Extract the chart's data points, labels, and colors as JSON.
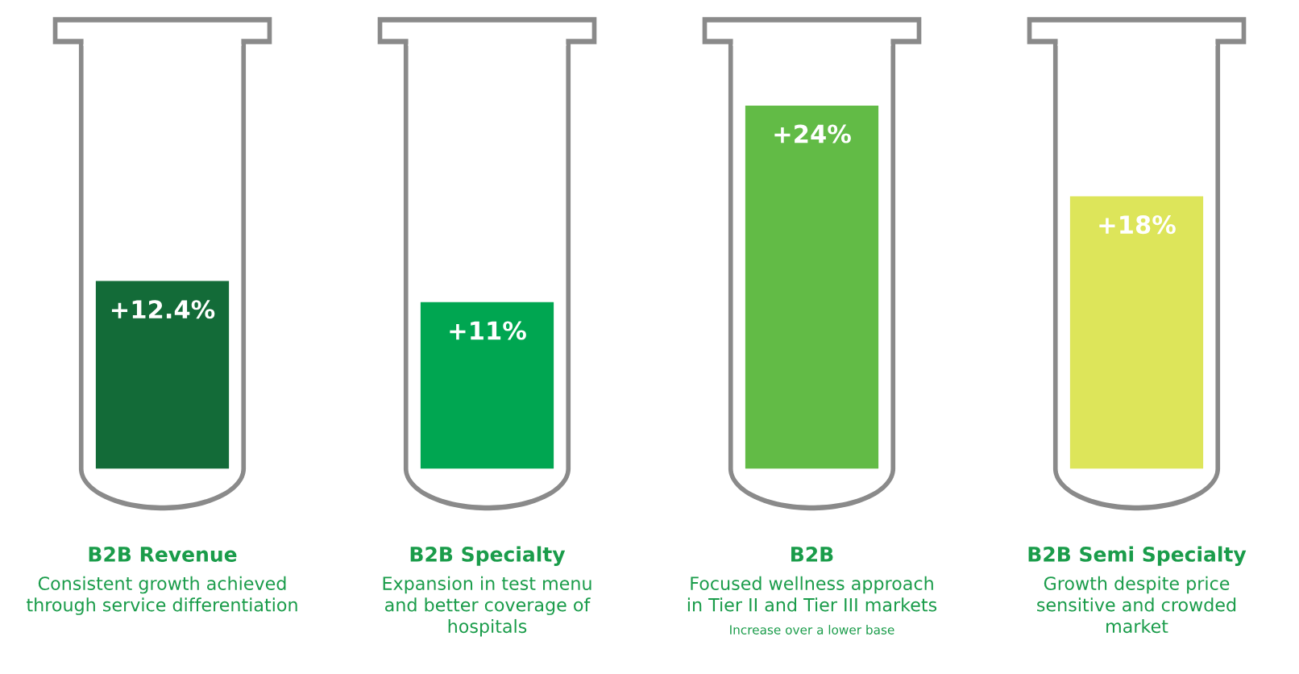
{
  "chart_data": {
    "type": "bar",
    "categories": [
      "B2B Revenue",
      "B2B Specialty",
      "B2B",
      "B2B Semi Specialty"
    ],
    "values": [
      12.4,
      11,
      24,
      18
    ],
    "colors": [
      "#136b38",
      "#00a651",
      "#62bb46",
      "#dde55a"
    ],
    "value_labels": [
      "+12.4%",
      "+11%",
      "+24%",
      "+18%"
    ],
    "annotations": [
      "Consistent growth achieved\nthrough service differentiation",
      "Expansion in test menu\nand better coverage of\nhospitals",
      "Focused wellness approach\nin Tier II and Tier III markets",
      "Growth despite price\nsensitive and crowded\nmarket",
      "Increase over a lower base"
    ]
  }
}
